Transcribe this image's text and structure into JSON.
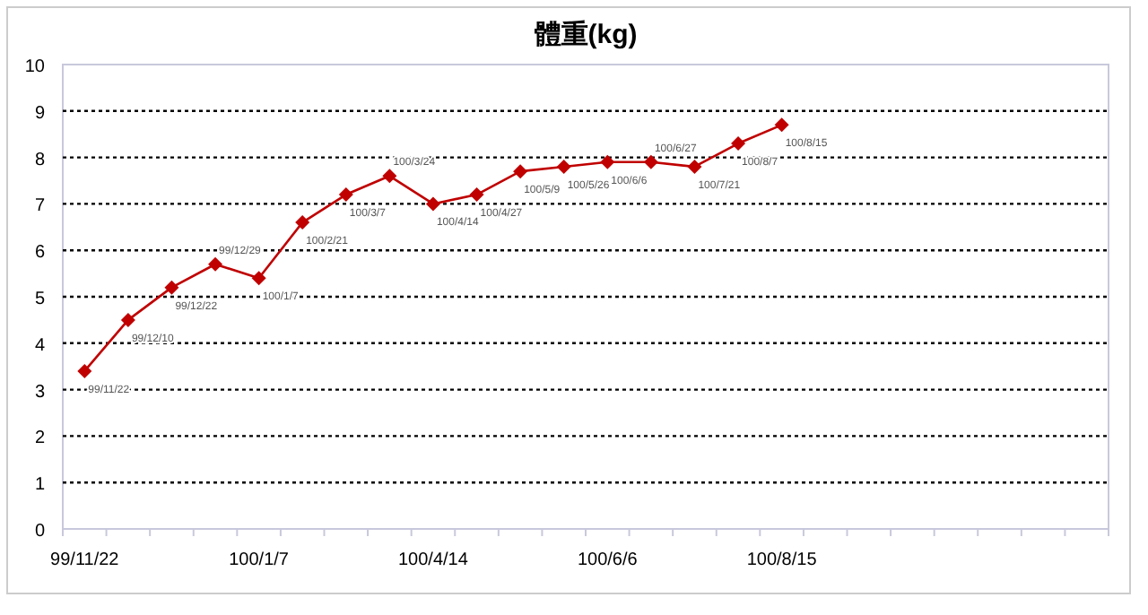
{
  "chart_data": {
    "type": "line",
    "title": "體重(kg)",
    "categories": [
      "99/11/22",
      null,
      null,
      null,
      "100/1/7",
      null,
      null,
      null,
      "100/4/14",
      null,
      null,
      null,
      "100/6/6",
      null,
      null,
      null,
      "100/8/15",
      null,
      null,
      null,
      null,
      null,
      null,
      null
    ],
    "series": [
      {
        "color": "#c00000",
        "values": [
          3.4,
          4.5,
          5.2,
          5.7,
          5.4,
          6.6,
          7.2,
          7.6,
          7.0,
          7.2,
          7.7,
          7.8,
          7.9,
          7.9,
          7.8,
          8.3,
          8.7,
          null,
          null,
          null,
          null,
          null,
          null,
          null
        ],
        "value_labels": [
          "99/11/22",
          "99/12/10",
          "99/12/22",
          "99/12/29",
          "100/1/7",
          "100/2/21",
          "100/3/7",
          "100/3/24",
          "100/4/14",
          "100/4/27",
          "100/5/9",
          "100/5/26",
          "100/6/6",
          "100/6/27",
          "100/7/21",
          "100/8/7",
          "100/8/15",
          null,
          null,
          null,
          null,
          null,
          null,
          null
        ]
      }
    ],
    "ylim": [
      0,
      10
    ],
    "yticks": [
      0,
      1,
      2,
      3,
      4,
      5,
      6,
      7,
      8,
      9,
      10
    ],
    "grid": "y",
    "marker": "diamond",
    "line_style": "solid"
  }
}
